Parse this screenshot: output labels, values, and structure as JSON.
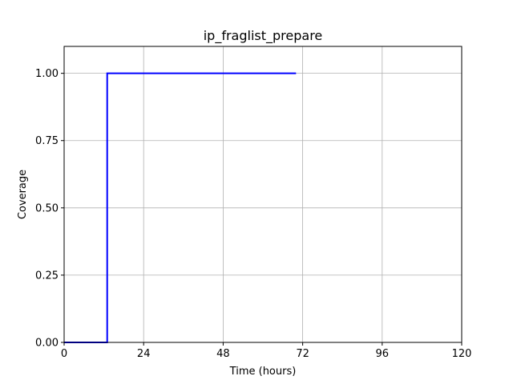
{
  "chart_data": {
    "type": "line",
    "title": "ip_fraglist_prepare",
    "xlabel": "Time (hours)",
    "ylabel": "Coverage",
    "xlim": [
      0,
      120
    ],
    "ylim": [
      0,
      1.1
    ],
    "xticks": [
      0,
      24,
      48,
      72,
      96,
      120
    ],
    "xtick_labels": [
      "0",
      "24",
      "48",
      "72",
      "96",
      "120"
    ],
    "yticks": [
      0,
      0.25,
      0.5,
      0.75,
      1.0
    ],
    "ytick_labels": [
      "0.00",
      "0.25",
      "0.50",
      "0.75",
      "1.00"
    ],
    "grid": true,
    "series": [
      {
        "color": "#0000ff",
        "step": true,
        "x": [
          0,
          13,
          13,
          70
        ],
        "y": [
          0,
          0,
          1.0,
          1.0
        ]
      }
    ]
  }
}
